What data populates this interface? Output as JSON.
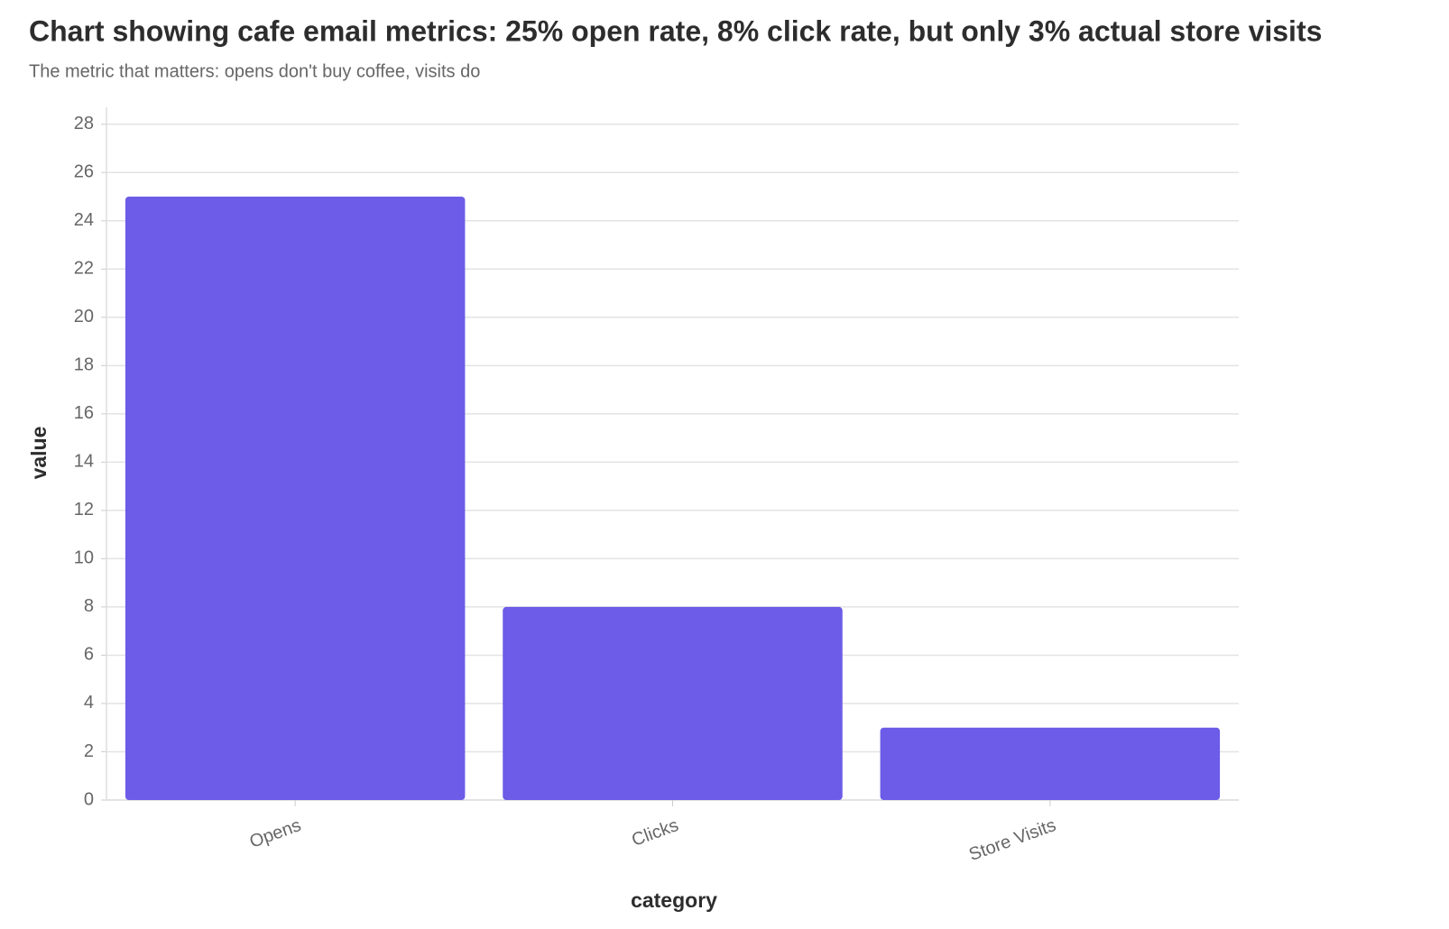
{
  "chart_data": {
    "type": "bar",
    "title": "Chart showing cafe email metrics: 25% open rate, 8% click rate, but only 3% actual store visits",
    "subtitle": "The metric that matters: opens don't buy coffee, visits do",
    "x_label": "category",
    "y_label": "value",
    "categories": [
      "Opens",
      "Clicks",
      "Store Visits"
    ],
    "values": [
      25,
      8,
      3
    ],
    "color": "#6c5ce7",
    "ylim": [
      0,
      28.7
    ],
    "yticks": [
      0,
      2,
      4,
      6,
      8,
      10,
      12,
      14,
      16,
      18,
      20,
      22,
      24,
      26,
      28
    ],
    "grid": true
  }
}
